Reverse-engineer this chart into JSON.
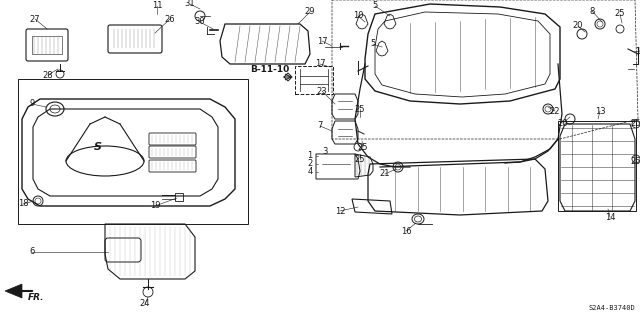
{
  "background_color": "#ffffff",
  "line_color": "#1a1a1a",
  "label_fontsize": 6.0,
  "diagram_id": "S2A4-B3740D",
  "ref_label": "B-11-10",
  "gray": "#888888",
  "darkgray": "#555555"
}
